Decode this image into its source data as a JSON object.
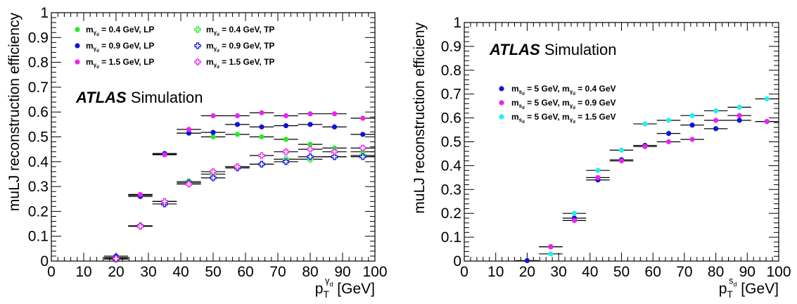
{
  "chart_data": [
    {
      "type": "scatter",
      "ylabel": "muLJ reconstruction efficiency",
      "xlabel_main": "p",
      "xlabel_sub": "T",
      "xlabel_sup": "γ",
      "xlabel_sup_sub": "d",
      "xlabel_unit": "[GeV]",
      "xlim": [
        0,
        100
      ],
      "ylim": [
        0,
        1
      ],
      "xticks": [
        "0",
        "10",
        "20",
        "30",
        "40",
        "50",
        "60",
        "70",
        "80",
        "90",
        "100"
      ],
      "yticks": [
        "0",
        "0.1",
        "0.2",
        "0.3",
        "0.4",
        "0.5",
        "0.6",
        "0.7",
        "0.8",
        "0.9",
        "1"
      ],
      "atlas_label": "ATLAS",
      "atlas_sub": "Simulation",
      "legend_position": "top",
      "series": [
        {
          "name": "m = 0.4 GeV, LP",
          "m_sub": "γ",
          "m_subsub": "d",
          "rest": "= 0.4 GeV, LP",
          "color": "#22ee22",
          "marker": "dot",
          "x": [
            20,
            27.5,
            35,
            42.5,
            50,
            57.5,
            65,
            72.5,
            80,
            87.5,
            96.25
          ],
          "y": [
            0.015,
            0.265,
            0.43,
            0.515,
            0.5,
            0.51,
            0.5,
            0.49,
            0.47,
            0.455,
            0.44
          ]
        },
        {
          "name": "m = 0.9 GeV, LP",
          "m_sub": "γ",
          "m_subsub": "d",
          "rest": "= 0.9 GeV, LP",
          "color": "#1111dd",
          "marker": "dot",
          "x": [
            20,
            27.5,
            35,
            42.5,
            50,
            57.5,
            65,
            72.5,
            80,
            87.5,
            96.25
          ],
          "y": [
            0.02,
            0.26,
            0.433,
            0.515,
            0.518,
            0.55,
            0.54,
            0.545,
            0.55,
            0.54,
            0.51
          ]
        },
        {
          "name": "m = 1.5 GeV, LP",
          "m_sub": "γ",
          "m_subsub": "d",
          "rest": "= 1.5 GeV, LP",
          "color": "#ee22ee",
          "marker": "dot",
          "x": [
            20,
            27.5,
            35,
            42.5,
            50,
            57.5,
            65,
            72.5,
            80,
            87.5,
            96.25
          ],
          "y": [
            0.01,
            0.268,
            0.428,
            0.53,
            0.585,
            0.585,
            0.597,
            0.585,
            0.593,
            0.593,
            0.575
          ]
        },
        {
          "name": "m = 0.4 GeV, TP",
          "m_sub": "γ",
          "m_subsub": "d",
          "rest": "= 0.4 GeV, TP",
          "color": "#22ee22",
          "marker": "cross",
          "x": [
            20,
            27.5,
            35,
            42.5,
            50,
            57.5,
            65,
            72.5,
            80,
            87.5,
            96.25
          ],
          "y": [
            0.01,
            0.14,
            0.24,
            0.32,
            0.35,
            0.38,
            0.39,
            0.41,
            0.41,
            0.42,
            0.425
          ]
        },
        {
          "name": "m = 0.9 GeV, TP",
          "m_sub": "γ",
          "m_subsub": "d",
          "rest": "= 0.9 GeV, TP",
          "color": "#1111dd",
          "marker": "cross",
          "x": [
            20,
            27.5,
            35,
            42.5,
            50,
            57.5,
            65,
            72.5,
            80,
            87.5,
            96.25
          ],
          "y": [
            0.008,
            0.142,
            0.23,
            0.315,
            0.335,
            0.375,
            0.39,
            0.4,
            0.42,
            0.42,
            0.42
          ]
        },
        {
          "name": "m = 1.5 GeV, TP",
          "m_sub": "γ",
          "m_subsub": "d",
          "rest": "= 1.5 GeV, TP",
          "color": "#ee22ee",
          "marker": "cross",
          "x": [
            20,
            27.5,
            35,
            42.5,
            50,
            57.5,
            65,
            72.5,
            80,
            87.5,
            96.25
          ],
          "y": [
            0.01,
            0.14,
            0.24,
            0.31,
            0.36,
            0.38,
            0.425,
            0.44,
            0.45,
            0.44,
            0.455
          ]
        }
      ]
    },
    {
      "type": "scatter",
      "ylabel": "muLJ reconstruction efficieny",
      "xlabel_main": "p",
      "xlabel_sub": "T",
      "xlabel_sup": "s",
      "xlabel_sup_sub": "d",
      "xlabel_unit": "[GeV]",
      "xlim": [
        0,
        100
      ],
      "ylim": [
        0,
        1
      ],
      "xticks": [
        "0",
        "10",
        "20",
        "30",
        "40",
        "50",
        "60",
        "70",
        "80",
        "90",
        "100"
      ],
      "yticks": [
        "0",
        "0.1",
        "0.2",
        "0.3",
        "0.4",
        "0.5",
        "0.6",
        "0.7",
        "0.8",
        "0.9",
        "1"
      ],
      "atlas_label": "ATLAS",
      "atlas_sub": "Simulation",
      "legend_position": "top-left",
      "series": [
        {
          "name": "m = 5 GeV, m = 0.4 GeV",
          "color": "#1111dd",
          "marker": "dot",
          "x": [
            20,
            27.5,
            35,
            42.5,
            50,
            57.5,
            65,
            72.5,
            80,
            87.5,
            96.25
          ],
          "y": [
            0.002,
            0.06,
            0.18,
            0.34,
            0.425,
            0.485,
            0.535,
            0.57,
            0.555,
            0.59,
            0.585
          ]
        },
        {
          "name": "m = 5 GeV, m = 0.9 GeV",
          "color": "#ee22ee",
          "marker": "dot",
          "x": [
            27.5,
            35,
            42.5,
            50,
            57.5,
            65,
            72.5,
            80,
            87.5,
            96.25
          ],
          "y": [
            0.06,
            0.17,
            0.35,
            0.42,
            0.48,
            0.5,
            0.51,
            0.59,
            0.61,
            0.585
          ]
        },
        {
          "name": "m = 5 GeV, m = 1.5 GeV",
          "color": "#22eeee",
          "marker": "dot",
          "x": [
            27.5,
            35,
            42.5,
            50,
            57.5,
            65,
            72.5,
            80,
            87.5,
            96.25
          ],
          "y": [
            0.03,
            0.2,
            0.38,
            0.465,
            0.575,
            0.59,
            0.61,
            0.63,
            0.645,
            0.68
          ]
        }
      ],
      "legend_entries": [
        {
          "m1_sub": "s",
          "m1_subsub": "d",
          "mid": "= 5 GeV, m",
          "m2_sub": "γ",
          "m2_subsub": "d",
          "tail": "= 0.4 GeV"
        },
        {
          "m1_sub": "s",
          "m1_subsub": "d",
          "mid": "= 5 GeV, m",
          "m2_sub": "γ",
          "m2_subsub": "d",
          "tail": "= 0.9 GeV"
        },
        {
          "m1_sub": "s",
          "m1_subsub": "d",
          "mid": "= 5 GeV, m",
          "m2_sub": "γ",
          "m2_subsub": "d",
          "tail": "= 1.5 GeV"
        }
      ]
    }
  ]
}
